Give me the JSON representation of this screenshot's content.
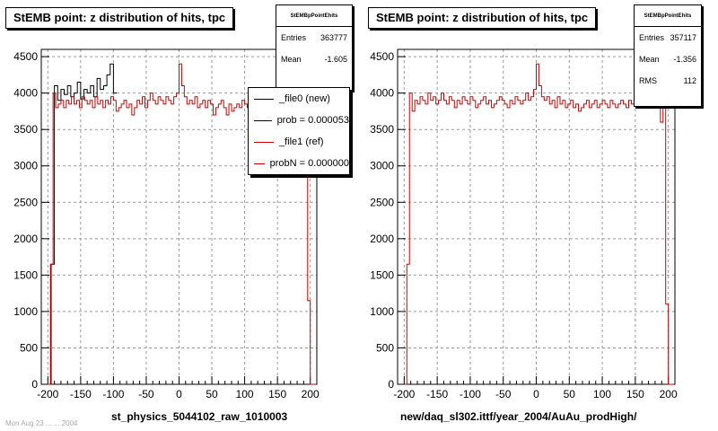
{
  "colors": {
    "new": "#000000",
    "ref": "#cc0000",
    "grid": "#999999"
  },
  "panels": [
    {
      "title": "StEMB point: z distribution of hits, tpc",
      "xlabel": "st_physics_5044102_raw_1010003",
      "stats": {
        "name": "StEMBpPointEhits",
        "rows": [
          {
            "label": "Entries",
            "value": "363777"
          },
          {
            "label": "Mean",
            "value": "-1.605"
          }
        ]
      },
      "legend": [
        {
          "label": "_file0 (new)",
          "color": "#000000"
        },
        {
          "label": "prob = 0.000053",
          "color": "#000000"
        },
        {
          "label": "_file1 (ref)",
          "color": "#cc0000"
        },
        {
          "label": "probN = 0.000000",
          "color": "#cc0000"
        }
      ]
    },
    {
      "title": "StEMB point: z distribution of hits, tpc",
      "xlabel": "new/daq_sl302.ittf/year_2004/AuAu_prodHigh/",
      "stats": {
        "name": "StEMBpPointEhits",
        "rows": [
          {
            "label": "Entries",
            "value": "357117"
          },
          {
            "label": "Mean",
            "value": "-1.356"
          },
          {
            "label": "RMS",
            "value": "112"
          }
        ]
      },
      "legend": []
    }
  ],
  "footer": "Mon Aug 23 ... ... 2004",
  "chart_data": [
    {
      "type": "line",
      "title": "StEMB point: z distribution of hits, tpc",
      "xlabel": "st_physics_5044102_raw_1010003",
      "xlim": [
        -210,
        210
      ],
      "ylim": [
        0,
        4600
      ],
      "xticks": [
        -200,
        -150,
        -100,
        -50,
        0,
        50,
        100,
        150,
        200
      ],
      "yticks": [
        0,
        500,
        1000,
        1500,
        2000,
        2500,
        3000,
        3500,
        4000,
        4500
      ],
      "grid": true,
      "legend_position": "top-right",
      "series": [
        {
          "name": "_file0 (new)",
          "color": "#000000",
          "x": [
            -200,
            -195,
            -190,
            -185,
            -180,
            -175,
            -170,
            -165,
            -160,
            -155,
            -150,
            -145,
            -140,
            -135,
            -130,
            -125,
            -120,
            -115,
            -110,
            -105,
            -100
          ],
          "y": [
            0,
            1650,
            4100,
            3900,
            4050,
            3980,
            4100,
            3950,
            4000,
            4150,
            3920,
            4050,
            4000,
            4100,
            3950,
            4200,
            4050,
            4100,
            4250,
            4400,
            4000
          ]
        },
        {
          "name": "_file1 (ref)",
          "color": "#cc0000",
          "x": [
            -200,
            -196,
            -192,
            -188,
            -184,
            -180,
            -176,
            -172,
            -168,
            -164,
            -160,
            -156,
            -152,
            -148,
            -144,
            -140,
            -136,
            -132,
            -128,
            -124,
            -120,
            -116,
            -112,
            -108,
            -104,
            -100,
            -96,
            -92,
            -88,
            -84,
            -80,
            -76,
            -72,
            -68,
            -64,
            -60,
            -56,
            -52,
            -48,
            -44,
            -40,
            -36,
            -32,
            -28,
            -24,
            -20,
            -16,
            -12,
            -8,
            -4,
            0,
            4,
            8,
            12,
            16,
            20,
            24,
            28,
            32,
            36,
            40,
            44,
            48,
            52,
            56,
            60,
            64,
            68,
            72,
            76,
            80,
            84,
            88,
            92,
            96,
            100,
            104,
            108,
            112,
            116,
            120,
            124,
            128,
            132,
            136,
            140,
            144,
            148,
            152,
            156,
            160,
            164,
            168,
            172,
            176,
            180,
            184,
            188,
            192,
            196,
            200,
            204
          ],
          "y": [
            0,
            1650,
            4000,
            3800,
            3850,
            3900,
            3800,
            3900,
            3850,
            3950,
            3850,
            3900,
            3800,
            3950,
            3900,
            3850,
            3900,
            3800,
            3950,
            3850,
            3900,
            3800,
            3900,
            3850,
            3950,
            3900,
            3750,
            3800,
            3850,
            3900,
            3800,
            3850,
            3700,
            3800,
            3900,
            3850,
            3950,
            3800,
            3900,
            4000,
            3900,
            3850,
            3950,
            3900,
            3850,
            3950,
            3900,
            3850,
            3950,
            4000,
            4400,
            4100,
            3950,
            3850,
            3900,
            3850,
            3950,
            3800,
            3850,
            3900,
            3800,
            3900,
            3850,
            3700,
            3800,
            3850,
            3900,
            3800,
            3700,
            3850,
            3750,
            3800,
            3850,
            3800,
            3900,
            3850,
            3800,
            3850,
            3800,
            3900,
            3850,
            3800,
            3850,
            3800,
            3850,
            3800,
            3850,
            3900,
            3850,
            3800,
            3900,
            3850,
            3900,
            3850,
            3800,
            3900,
            3850,
            3500,
            3900,
            1150,
            0,
            0
          ]
        }
      ]
    },
    {
      "type": "line",
      "title": "StEMB point: z distribution of hits, tpc",
      "xlabel": "new/daq_sl302.ittf/year_2004/AuAu_prodHigh/",
      "xlim": [
        -210,
        210
      ],
      "ylim": [
        0,
        4600
      ],
      "xticks": [
        -200,
        -150,
        -100,
        -50,
        0,
        50,
        100,
        150,
        200
      ],
      "yticks": [
        0,
        500,
        1000,
        1500,
        2000,
        2500,
        3000,
        3500,
        4000,
        4500
      ],
      "grid": true,
      "series": [
        {
          "name": "",
          "color": "#cc0000",
          "x": [
            -200,
            -196,
            -192,
            -188,
            -184,
            -180,
            -176,
            -172,
            -168,
            -164,
            -160,
            -156,
            -152,
            -148,
            -144,
            -140,
            -136,
            -132,
            -128,
            -124,
            -120,
            -116,
            -112,
            -108,
            -104,
            -100,
            -96,
            -92,
            -88,
            -84,
            -80,
            -76,
            -72,
            -68,
            -64,
            -60,
            -56,
            -52,
            -48,
            -44,
            -40,
            -36,
            -32,
            -28,
            -24,
            -20,
            -16,
            -12,
            -8,
            -4,
            0,
            4,
            8,
            12,
            16,
            20,
            24,
            28,
            32,
            36,
            40,
            44,
            48,
            52,
            56,
            60,
            64,
            68,
            72,
            76,
            80,
            84,
            88,
            92,
            96,
            100,
            104,
            108,
            112,
            116,
            120,
            124,
            128,
            132,
            136,
            140,
            144,
            148,
            152,
            156,
            160,
            164,
            168,
            172,
            176,
            180,
            184,
            188,
            192,
            196,
            200,
            204
          ],
          "y": [
            0,
            1650,
            4000,
            3750,
            3900,
            3850,
            3950,
            3900,
            3850,
            4000,
            3900,
            3950,
            3850,
            3900,
            4000,
            3900,
            3850,
            3950,
            3900,
            3800,
            3900,
            3850,
            3950,
            3900,
            3850,
            3950,
            3900,
            3800,
            3850,
            3900,
            3950,
            3850,
            3900,
            3800,
            3850,
            3900,
            3950,
            3900,
            3850,
            3800,
            3900,
            3850,
            3950,
            3900,
            3850,
            3900,
            4000,
            3900,
            3950,
            4050,
            4400,
            4100,
            3950,
            3900,
            3950,
            3850,
            3900,
            3800,
            3950,
            3850,
            3900,
            3800,
            3850,
            3900,
            3800,
            3850,
            3750,
            3800,
            3850,
            3900,
            3800,
            3850,
            3900,
            3800,
            3850,
            3900,
            3850,
            3800,
            3900,
            3850,
            3800,
            3850,
            3900,
            3850,
            3800,
            3900,
            3850,
            3900,
            3850,
            3800,
            3900,
            3850,
            3900,
            3850,
            3800,
            3950,
            3850,
            3600,
            3900,
            1100,
            0,
            0
          ]
        }
      ]
    }
  ]
}
